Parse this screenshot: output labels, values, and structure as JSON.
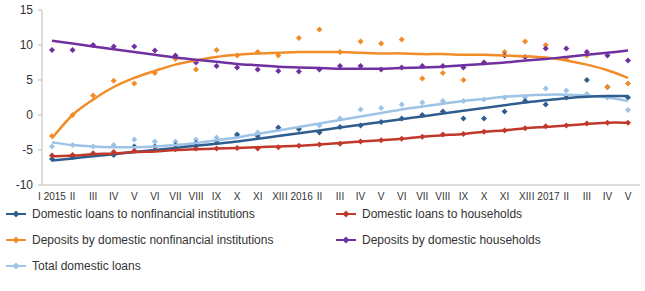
{
  "chart_data": {
    "type": "scatter",
    "categories": [
      "I 2015",
      "II",
      "III",
      "IV",
      "V",
      "VI",
      "VII",
      "VIII",
      "IX",
      "X",
      "XI",
      "XII",
      "I 2016",
      "II",
      "III",
      "IV",
      "V",
      "VI",
      "VII",
      "VIII",
      "IX",
      "X",
      "XI",
      "XII",
      "I 2017",
      "II",
      "III",
      "IV",
      "V"
    ],
    "ylim": [
      -10,
      15
    ],
    "yticks": [
      -10,
      -5,
      0,
      5,
      10,
      15
    ],
    "grid": false,
    "legend": "bottom",
    "marker": "diamond",
    "series": [
      {
        "name": "Domestic loans to nonfinancial institutions",
        "color": "#2f5e8e",
        "values": [
          -6.3,
          -6.0,
          -5.5,
          -5.7,
          -4.5,
          -4.5,
          -4.3,
          -4.0,
          -3.8,
          -2.8,
          -3.0,
          -1.8,
          -2.0,
          -2.5,
          -1.7,
          -1.5,
          -1.0,
          -0.5,
          0.0,
          0.5,
          -0.5,
          -0.5,
          0.5,
          2.0,
          1.5,
          2.5,
          5.0,
          4.0,
          2.5
        ],
        "trend": [
          -6.5,
          -6.2,
          -5.9,
          -5.6,
          -5.3,
          -5.0,
          -4.7,
          -4.4,
          -4.1,
          -3.8,
          -3.4,
          -3.0,
          -2.6,
          -2.2,
          -1.8,
          -1.4,
          -1.0,
          -0.6,
          -0.2,
          0.2,
          0.6,
          1.0,
          1.4,
          1.8,
          2.1,
          2.4,
          2.6,
          2.7,
          2.7
        ]
      },
      {
        "name": "Domestic loans to households",
        "color": "#c0392b",
        "values": [
          -5.8,
          -5.7,
          -5.5,
          -5.3,
          -5.1,
          -5.0,
          -4.9,
          -4.8,
          -4.8,
          -4.7,
          -4.8,
          -4.6,
          -4.4,
          -4.2,
          -4.1,
          -3.8,
          -3.6,
          -3.4,
          -3.1,
          -2.8,
          -2.7,
          -2.4,
          -2.2,
          -1.9,
          -1.6,
          -1.5,
          -1.2,
          -1.1,
          -1.1
        ],
        "trend": [
          -5.9,
          -5.8,
          -5.6,
          -5.5,
          -5.3,
          -5.2,
          -5.0,
          -4.9,
          -4.8,
          -4.7,
          -4.6,
          -4.5,
          -4.4,
          -4.2,
          -4.0,
          -3.8,
          -3.6,
          -3.4,
          -3.1,
          -2.9,
          -2.7,
          -2.4,
          -2.2,
          -1.9,
          -1.7,
          -1.5,
          -1.3,
          -1.1,
          -1.1
        ]
      },
      {
        "name": "Deposits by domestic nonfinancial institutions",
        "color": "#f28c28",
        "values": [
          -3.0,
          0.0,
          2.8,
          4.9,
          4.5,
          6.0,
          8.0,
          6.5,
          9.3,
          8.5,
          9.0,
          8.5,
          11.0,
          12.2,
          9.0,
          10.5,
          10.2,
          10.8,
          5.2,
          6.0,
          5.0,
          7.5,
          9.0,
          10.5,
          10.0,
          8.0,
          8.5,
          4.0,
          4.5
        ],
        "trend": [
          -3.3,
          0.0,
          2.2,
          4.0,
          5.3,
          6.3,
          7.2,
          7.8,
          8.3,
          8.6,
          8.8,
          8.9,
          9.0,
          9.0,
          9.0,
          8.9,
          8.8,
          8.8,
          8.7,
          8.7,
          8.6,
          8.6,
          8.5,
          8.4,
          8.2,
          7.8,
          7.2,
          6.4,
          5.3
        ]
      },
      {
        "name": "Deposits by domestic households",
        "color": "#7030a0",
        "values": [
          9.3,
          9.3,
          10.0,
          9.8,
          9.8,
          9.2,
          8.5,
          7.5,
          7.0,
          6.8,
          6.5,
          6.3,
          6.2,
          6.5,
          7.0,
          7.0,
          6.5,
          6.8,
          7.0,
          7.0,
          6.8,
          7.5,
          8.5,
          8.3,
          9.5,
          9.5,
          9.0,
          8.5,
          7.8
        ],
        "trend": [
          10.6,
          10.2,
          9.8,
          9.4,
          9.0,
          8.6,
          8.2,
          7.9,
          7.6,
          7.3,
          7.1,
          6.9,
          6.8,
          6.7,
          6.6,
          6.6,
          6.6,
          6.7,
          6.8,
          6.9,
          7.1,
          7.3,
          7.5,
          7.8,
          8.0,
          8.3,
          8.6,
          8.9,
          9.2
        ]
      },
      {
        "name": "Total domestic loans",
        "color": "#9dc3e6",
        "values": [
          -4.5,
          -4.3,
          -4.5,
          -4.3,
          -3.5,
          -3.8,
          -3.8,
          -3.5,
          -3.2,
          -3.0,
          -2.5,
          -2.0,
          -2.0,
          -1.5,
          -0.5,
          0.8,
          1.0,
          1.5,
          1.8,
          2.0,
          2.0,
          2.2,
          2.5,
          2.5,
          3.8,
          3.5,
          3.0,
          2.5,
          0.7
        ],
        "trend": [
          -3.9,
          -4.3,
          -4.5,
          -4.6,
          -4.6,
          -4.5,
          -4.3,
          -4.0,
          -3.6,
          -3.2,
          -2.7,
          -2.2,
          -1.7,
          -1.2,
          -0.7,
          -0.2,
          0.3,
          0.8,
          1.2,
          1.6,
          2.0,
          2.3,
          2.6,
          2.8,
          2.9,
          2.9,
          2.8,
          2.5,
          2.0
        ]
      }
    ]
  }
}
